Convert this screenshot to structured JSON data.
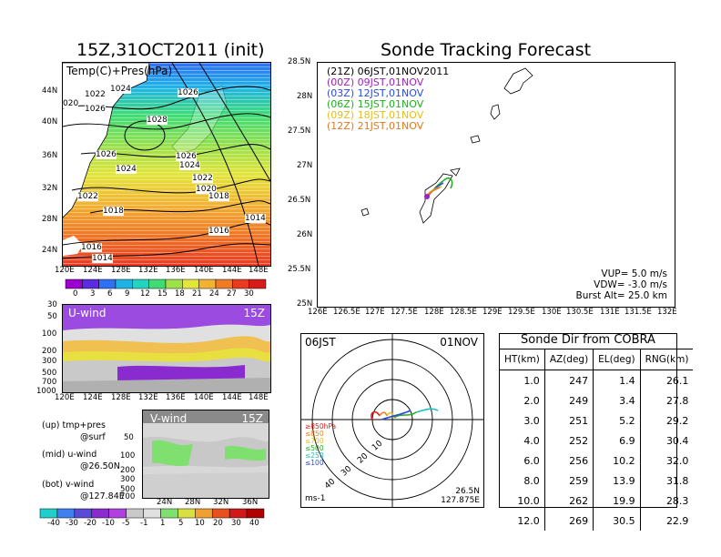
{
  "header": {
    "left_title": "15Z,31OCT2011 (init)",
    "right_title": "Sonde Tracking Forecast"
  },
  "map_panel": {
    "label": "Temp(C)+Pres(hPa)",
    "lat_ticks": [
      "44N",
      "40N",
      "36N",
      "32N",
      "28N",
      "24N"
    ],
    "lon_ticks": [
      "120E",
      "124E",
      "128E",
      "132E",
      "136E",
      "140E",
      "144E",
      "148E"
    ],
    "isobar_labels": [
      "1022",
      "1024",
      "1026",
      "1026",
      "1028",
      "1026",
      "1024",
      "1026",
      "1024",
      "1022",
      "1020",
      "1018",
      "1022",
      "1018",
      "1016",
      "1016",
      "1014",
      "1014",
      "020"
    ],
    "colorbar_ticks": [
      "0",
      "3",
      "6",
      "9",
      "12",
      "15",
      "18",
      "21",
      "24",
      "27",
      "30"
    ],
    "colorbar_colors": [
      "#9b00cc",
      "#5a2be0",
      "#2f6ff2",
      "#1fb4e8",
      "#22d3c0",
      "#3fdc75",
      "#9fe04a",
      "#e2e53a",
      "#f3b233",
      "#f07a26",
      "#ea3a22",
      "#d91a1a"
    ]
  },
  "uwind_panel": {
    "label": "U-wind",
    "time": "15Z",
    "p_ticks": [
      "30",
      "50",
      "100",
      "200",
      "300",
      "500",
      "700",
      "1000"
    ],
    "lon_ticks": [
      "120E",
      "124E",
      "128E",
      "132E",
      "136E",
      "140E",
      "144E",
      "148E"
    ]
  },
  "vwind_panel": {
    "label": "V-wind",
    "time": "15Z",
    "p_ticks": [
      "50",
      "100",
      "200",
      "300",
      "500",
      "700",
      "1000"
    ],
    "lat_ticks": [
      "24N",
      "28N",
      "32N",
      "36N"
    ],
    "colorbar_ticks": [
      "-40",
      "-30",
      "-20",
      "-10",
      "-5",
      "-1",
      "1",
      "5",
      "10",
      "20",
      "30",
      "40"
    ],
    "colorbar_colors": [
      "#20d0c8",
      "#3f7ff0",
      "#5b4ad8",
      "#8a2bd0",
      "#b040e0",
      "#c9c9c9",
      "#e0e0e0",
      "#7fe070",
      "#d8e040",
      "#f0a030",
      "#e85020",
      "#d01818",
      "#b00000"
    ]
  },
  "notes": {
    "up": "(up) tmp+pres",
    "up_sub": "@surf",
    "mid": "(mid) u-wind",
    "mid_sub": "@26.50N",
    "bot": "(bot) v-wind",
    "bot_sub": "@127.84E"
  },
  "track_panel": {
    "legend": [
      {
        "text": "(21Z) 06JST,01NOV2011",
        "color": "#000000"
      },
      {
        "text": "(00Z) 09JST,01NOV",
        "color": "#a020c0"
      },
      {
        "text": "(03Z) 12JST,01NOV",
        "color": "#2a4cd8"
      },
      {
        "text": "(06Z) 15JST,01NOV",
        "color": "#20b020"
      },
      {
        "text": "(09Z) 18JST,01NOV",
        "color": "#e0c020"
      },
      {
        "text": "(12Z) 21JST,01NOV",
        "color": "#e07820"
      }
    ],
    "lat_ticks": [
      "28.5N",
      "28N",
      "27.5N",
      "27N",
      "26.5N",
      "26N",
      "25.5N",
      "25N"
    ],
    "lon_ticks": [
      "126E",
      "126.5E",
      "127E",
      "127.5E",
      "128E",
      "128.5E",
      "129E",
      "129.5E",
      "130E",
      "130.5E",
      "131E",
      "131.5E",
      "132E"
    ],
    "params": {
      "vup": "VUP=  5.0  m/s",
      "vdw": "VDW= -3.0  m/s",
      "burst": "Burst Alt=  25.0  km"
    }
  },
  "polar_panel": {
    "time": "06JST",
    "date": "01NOV",
    "ring_labels": [
      "10",
      "20",
      "30",
      "40"
    ],
    "pressure_legend": [
      {
        "text": "≥850hPa",
        "color": "#e02020"
      },
      {
        "text": "≤850",
        "color": "#f08020"
      },
      {
        "text": "≤700",
        "color": "#e0c020"
      },
      {
        "text": "≤500",
        "color": "#20b020"
      },
      {
        "text": "≤250",
        "color": "#20c0c0"
      },
      {
        "text": "≤100",
        "color": "#2a4cd8"
      }
    ],
    "unit": "ms-1",
    "loc_lat": "26.5N",
    "loc_lon": "127.875E"
  },
  "sonde_table": {
    "title": "Sonde Dir from COBRA",
    "columns": [
      "HT(km)",
      "AZ(deg)",
      "EL(deg)",
      "RNG(km)"
    ],
    "rows": [
      [
        "1.0",
        "247",
        "1.4",
        "26.1"
      ],
      [
        "2.0",
        "249",
        "3.4",
        "27.8"
      ],
      [
        "3.0",
        "251",
        "5.2",
        "29.2"
      ],
      [
        "4.0",
        "252",
        "6.9",
        "30.4"
      ],
      [
        "6.0",
        "256",
        "10.2",
        "32.0"
      ],
      [
        "8.0",
        "259",
        "13.9",
        "31.8"
      ],
      [
        "10.0",
        "262",
        "19.9",
        "28.3"
      ],
      [
        "12.0",
        "269",
        "30.5",
        "22.9"
      ]
    ]
  }
}
